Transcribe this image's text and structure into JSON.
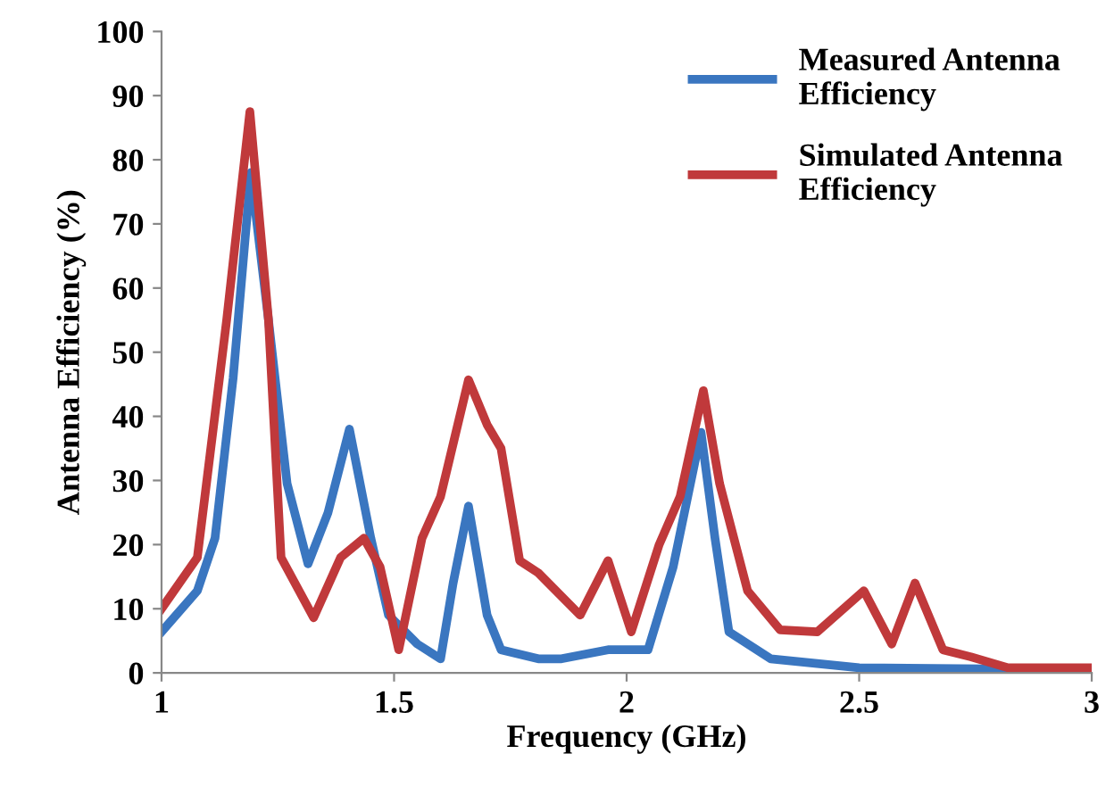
{
  "chart_data": {
    "type": "line",
    "xlabel": "Frequency (GHz)",
    "ylabel": "Antenna Efficiency (%)",
    "xlim": [
      1,
      3
    ],
    "ylim": [
      0,
      100
    ],
    "xticks": [
      1,
      1.5,
      2,
      2.5,
      3
    ],
    "yticks": [
      0,
      10,
      20,
      30,
      40,
      50,
      60,
      70,
      80,
      90,
      100
    ],
    "grid": false,
    "legend": "top right",
    "marker": "none",
    "line_style": "solid",
    "series": [
      {
        "name": "Measured Antenna Efficiency",
        "color": "#3a76c0",
        "x": [
          1.0,
          1.077,
          1.115,
          1.154,
          1.192,
          1.23,
          1.27,
          1.315,
          1.358,
          1.404,
          1.45,
          1.488,
          1.55,
          1.6,
          1.627,
          1.66,
          1.7,
          1.73,
          1.81,
          1.86,
          1.96,
          2.046,
          2.1,
          2.16,
          2.19,
          2.22,
          2.31,
          2.5,
          3.0
        ],
        "values": [
          6.4,
          12.8,
          21,
          46,
          78,
          55,
          29.5,
          17,
          25,
          38,
          21,
          9,
          4.5,
          2.2,
          14,
          26,
          9,
          3.6,
          2.2,
          2.2,
          3.6,
          3.6,
          16.5,
          37.5,
          21,
          6.4,
          2.2,
          0.8,
          0.5
        ]
      },
      {
        "name": "Simulated Antenna Efficiency",
        "color": "#c0393b",
        "x": [
          1.0,
          1.077,
          1.14,
          1.19,
          1.23,
          1.257,
          1.327,
          1.385,
          1.435,
          1.47,
          1.51,
          1.56,
          1.6,
          1.66,
          1.7,
          1.73,
          1.77,
          1.81,
          1.9,
          1.96,
          2.01,
          2.07,
          2.115,
          2.165,
          2.2,
          2.26,
          2.33,
          2.41,
          2.51,
          2.57,
          2.62,
          2.68,
          2.74,
          2.82,
          3.0
        ],
        "values": [
          10,
          18,
          55,
          87.5,
          55,
          18,
          8.6,
          18,
          21,
          16.5,
          3.6,
          21,
          27.5,
          45.7,
          38.7,
          35,
          17.5,
          15.6,
          9,
          17.5,
          6.4,
          20,
          27.5,
          44,
          29.5,
          12.8,
          6.7,
          6.4,
          12.8,
          4.5,
          14,
          3.6,
          2.5,
          0.8,
          0.8
        ]
      }
    ]
  }
}
